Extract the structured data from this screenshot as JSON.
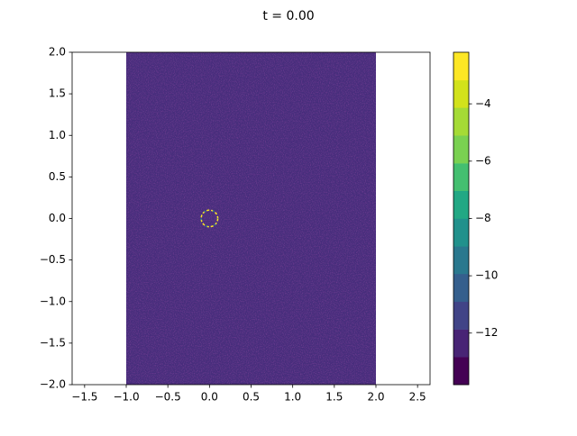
{
  "chart_data": {
    "type": "contour",
    "title": "t = 0.00",
    "xlim": [
      -1.65,
      2.65
    ],
    "ylim": [
      -2,
      2
    ],
    "xticks": [
      {
        "value": -1.5,
        "label": "−1.5"
      },
      {
        "value": -1,
        "label": "−1.0"
      },
      {
        "value": -0.5,
        "label": "−0.5"
      },
      {
        "value": 0,
        "label": "0.0"
      },
      0.5,
      {
        "value": 1,
        "label": "1.0"
      },
      1.5,
      {
        "value": 2,
        "label": "2.0"
      },
      2.5
    ],
    "yticks": [
      {
        "value": -2,
        "label": "−2.0"
      },
      {
        "value": -1.5,
        "label": "−1.5"
      },
      {
        "value": -1,
        "label": "−1.0"
      },
      {
        "value": -0.5,
        "label": "−0.5"
      },
      {
        "value": 0,
        "label": "0.0"
      },
      0.5,
      {
        "value": 1,
        "label": "1.0"
      },
      1.5,
      {
        "value": 2,
        "label": "2.0"
      }
    ],
    "field": {
      "x": [
        -1,
        2
      ],
      "y": [
        -2,
        2
      ],
      "color": "#472d7b"
    },
    "ring": {
      "center": [
        0,
        0
      ],
      "radius": 0.1
    },
    "colorbar": {
      "lim": [
        -13.8,
        -2.2
      ],
      "levels": [
        -13.8,
        -12.83,
        -11.87,
        -10.9,
        -9.93,
        -8.97,
        -8.0,
        -7.03,
        -6.07,
        -5.1,
        -4.13,
        -3.17,
        -2.2
      ],
      "colors": [
        "#440154",
        "#482475",
        "#414487",
        "#355f8d",
        "#2a788e",
        "#21918c",
        "#22a884",
        "#44bf70",
        "#7ad151",
        "#a5db36",
        "#d2e21b",
        "#fde725"
      ],
      "ticks": [
        {
          "value": -12,
          "label": "−12"
        },
        {
          "value": -10,
          "label": "−10"
        },
        {
          "value": -8,
          "label": "−8"
        },
        {
          "value": -6,
          "label": "−6"
        },
        {
          "value": -4,
          "label": "−4"
        }
      ]
    }
  }
}
